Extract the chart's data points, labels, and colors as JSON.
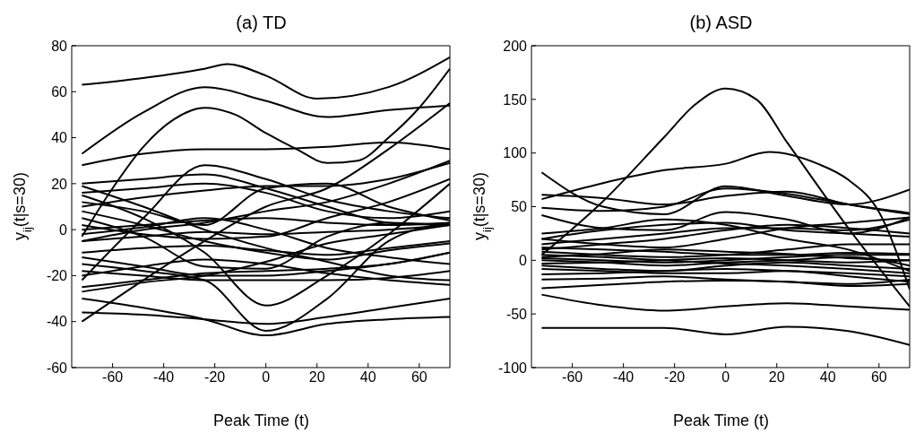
{
  "chart_data": [
    {
      "type": "line",
      "title": "(a) TD",
      "xlabel": "Peak Time (t)",
      "ylabel": "y$_{ij}$(t|s=30)",
      "xlim": [
        -76,
        72
      ],
      "xticks": [
        -60,
        -40,
        -20,
        0,
        20,
        40,
        60
      ],
      "ylim": [
        -60,
        80
      ],
      "yticks": [
        -60,
        -40,
        -20,
        0,
        20,
        40,
        60,
        80
      ],
      "marker": "none",
      "line_style": "solid",
      "x": [
        -72,
        -48,
        -24,
        0,
        24,
        48,
        72
      ],
      "series": [
        {
          "color": "#000000",
          "x": [
            -72,
            -48,
            -24,
            -15,
            0,
            20,
            48,
            72
          ],
          "values": [
            63,
            66,
            70,
            72,
            67,
            57,
            62,
            75
          ]
        },
        {
          "color": "#000000",
          "values": [
            33,
            51,
            62,
            56,
            49,
            52,
            54
          ]
        },
        {
          "color": "#000000",
          "x": [
            -72,
            -60,
            -48,
            -36,
            -24,
            -12,
            0,
            12,
            24,
            36,
            48,
            60,
            72
          ],
          "values": [
            -3,
            18,
            36,
            48,
            53,
            50,
            42,
            35,
            29,
            30,
            40,
            53,
            70
          ]
        },
        {
          "color": "#000000",
          "values": [
            28,
            33,
            35,
            35,
            36,
            38,
            35
          ]
        },
        {
          "color": "#000000",
          "values": [
            -22,
            5,
            28,
            22,
            13,
            8,
            5
          ]
        },
        {
          "color": "#000000",
          "values": [
            -36,
            -37,
            -39,
            -41,
            -38,
            -34,
            -30
          ]
        },
        {
          "color": "#000000",
          "values": [
            -30,
            -34,
            -39,
            -46,
            -41,
            -39,
            -38
          ]
        },
        {
          "color": "#000000",
          "values": [
            -15,
            -18,
            -22,
            -44,
            -30,
            -5,
            3
          ]
        },
        {
          "color": "#000000",
          "values": [
            15,
            5,
            -10,
            -33,
            -20,
            -2,
            20
          ]
        },
        {
          "color": "#000000",
          "values": [
            -40,
            -22,
            -5,
            10,
            18,
            35,
            55
          ]
        },
        {
          "color": "#000000",
          "values": [
            20,
            22,
            24,
            18,
            10,
            3,
            2
          ]
        },
        {
          "color": "#000000",
          "values": [
            16,
            18,
            20,
            16,
            8,
            5,
            8
          ]
        },
        {
          "color": "#000000",
          "values": [
            10,
            14,
            17,
            19,
            19,
            22,
            29
          ]
        },
        {
          "color": "#000000",
          "values": [
            2,
            -2,
            -4,
            -3,
            5,
            12,
            22
          ]
        },
        {
          "color": "#000000",
          "values": [
            -2,
            1,
            5,
            0,
            -8,
            -12,
            -15
          ]
        },
        {
          "color": "#000000",
          "values": [
            0,
            2,
            4,
            5,
            3,
            2,
            3
          ]
        },
        {
          "color": "#000000",
          "values": [
            -5,
            -3,
            -1,
            -2,
            -1,
            0,
            2
          ]
        },
        {
          "color": "#000000",
          "values": [
            -10,
            -8,
            -7,
            -9,
            -11,
            -8,
            -5
          ]
        },
        {
          "color": "#000000",
          "values": [
            -12,
            -16,
            -20,
            -20,
            -18,
            -15,
            -10
          ]
        },
        {
          "color": "#000000",
          "values": [
            -18,
            -20,
            -22,
            -22,
            -22,
            -21,
            -18
          ]
        },
        {
          "color": "#000000",
          "values": [
            -20,
            -16,
            -13,
            -15,
            -19,
            -22,
            -24
          ]
        },
        {
          "color": "#000000",
          "values": [
            -25,
            -22,
            -19,
            -18,
            -17,
            -15,
            -10
          ]
        },
        {
          "color": "#000000",
          "values": [
            -27,
            -23,
            -20,
            -14,
            -6,
            -2,
            2
          ]
        },
        {
          "color": "#000000",
          "values": [
            5,
            -3,
            -16,
            -17,
            -3,
            3,
            2
          ]
        },
        {
          "color": "#000000",
          "values": [
            8,
            2,
            -5,
            -10,
            -13,
            -9,
            -6
          ]
        },
        {
          "color": "#000000",
          "values": [
            19,
            10,
            0,
            -8,
            -14,
            -20,
            -22
          ]
        },
        {
          "color": "#000000",
          "values": [
            -5,
            0,
            3,
            8,
            12,
            20,
            30
          ]
        },
        {
          "color": "#000000",
          "values": [
            12,
            8,
            2,
            18,
            20,
            10,
            4
          ]
        }
      ]
    },
    {
      "type": "line",
      "title": "(b) ASD",
      "xlabel": "Peak Time (t)",
      "ylabel": "y$_{ij}$(t|s=30)",
      "xlim": [
        -76,
        72
      ],
      "xticks": [
        -60,
        -40,
        -20,
        0,
        20,
        40,
        60
      ],
      "ylim": [
        -100,
        200
      ],
      "yticks": [
        -100,
        -50,
        0,
        50,
        100,
        150,
        200
      ],
      "marker": "none",
      "line_style": "solid",
      "x": [
        -72,
        -48,
        -24,
        0,
        24,
        48,
        72
      ],
      "series": [
        {
          "color": "#000000",
          "x": [
            -72,
            -48,
            -24,
            -12,
            0,
            12,
            24,
            48,
            72
          ],
          "values": [
            5,
            55,
            115,
            145,
            160,
            150,
            110,
            30,
            -43
          ]
        },
        {
          "color": "#000000",
          "x": [
            -72,
            -48,
            -24,
            0,
            17,
            36,
            48,
            60,
            72
          ],
          "values": [
            57,
            72,
            84,
            90,
            101,
            90,
            75,
            45,
            -27
          ]
        },
        {
          "color": "#000000",
          "values": [
            82,
            50,
            43,
            69,
            60,
            52,
            66
          ]
        },
        {
          "color": "#000000",
          "values": [
            61,
            58,
            52,
            60,
            64,
            52,
            43
          ]
        },
        {
          "color": "#000000",
          "values": [
            49,
            46,
            50,
            67,
            62,
            52,
            44
          ]
        },
        {
          "color": "#000000",
          "values": [
            42,
            30,
            28,
            45,
            38,
            25,
            40
          ]
        },
        {
          "color": "#000000",
          "values": [
            25,
            30,
            38,
            33,
            20,
            10,
            -10
          ]
        },
        {
          "color": "#000000",
          "values": [
            20,
            28,
            33,
            35,
            28,
            25,
            22
          ]
        },
        {
          "color": "#000000",
          "values": [
            15,
            20,
            25,
            30,
            30,
            28,
            38
          ]
        },
        {
          "color": "#000000",
          "values": [
            10,
            15,
            20,
            28,
            33,
            30,
            25
          ]
        },
        {
          "color": "#000000",
          "values": [
            8,
            5,
            3,
            5,
            10,
            15,
            15
          ]
        },
        {
          "color": "#000000",
          "values": [
            5,
            3,
            0,
            -3,
            -5,
            -8,
            -12
          ]
        },
        {
          "color": "#000000",
          "values": [
            2,
            0,
            -2,
            0,
            3,
            5,
            5
          ]
        },
        {
          "color": "#000000",
          "values": [
            0,
            -2,
            -5,
            -2,
            0,
            3,
            -5
          ]
        },
        {
          "color": "#000000",
          "values": [
            -3,
            -2,
            0,
            2,
            0,
            -2,
            0
          ]
        },
        {
          "color": "#000000",
          "values": [
            -5,
            -8,
            -10,
            -5,
            -2,
            -5,
            -8
          ]
        },
        {
          "color": "#000000",
          "values": [
            -8,
            -10,
            -12,
            -12,
            -10,
            -15,
            -20
          ]
        },
        {
          "color": "#000000",
          "values": [
            -13,
            -12,
            -10,
            -8,
            -10,
            -12,
            -15
          ]
        },
        {
          "color": "#000000",
          "values": [
            -18,
            -17,
            -15,
            -18,
            -20,
            -22,
            -18
          ]
        },
        {
          "color": "#000000",
          "values": [
            -26,
            -23,
            -20,
            -19,
            -20,
            -24,
            -22
          ]
        },
        {
          "color": "#000000",
          "values": [
            12,
            10,
            8,
            5,
            5,
            7,
            6
          ]
        },
        {
          "color": "#000000",
          "values": [
            3,
            6,
            10,
            8,
            6,
            2,
            0
          ]
        },
        {
          "color": "#000000",
          "values": [
            20,
            15,
            12,
            20,
            30,
            35,
            40
          ]
        },
        {
          "color": "#000000",
          "values": [
            -32,
            -42,
            -47,
            -43,
            -40,
            -43,
            -46
          ]
        },
        {
          "color": "#000000",
          "values": [
            -63,
            -63,
            -63,
            -69,
            -62,
            -66,
            -79
          ]
        }
      ]
    }
  ]
}
